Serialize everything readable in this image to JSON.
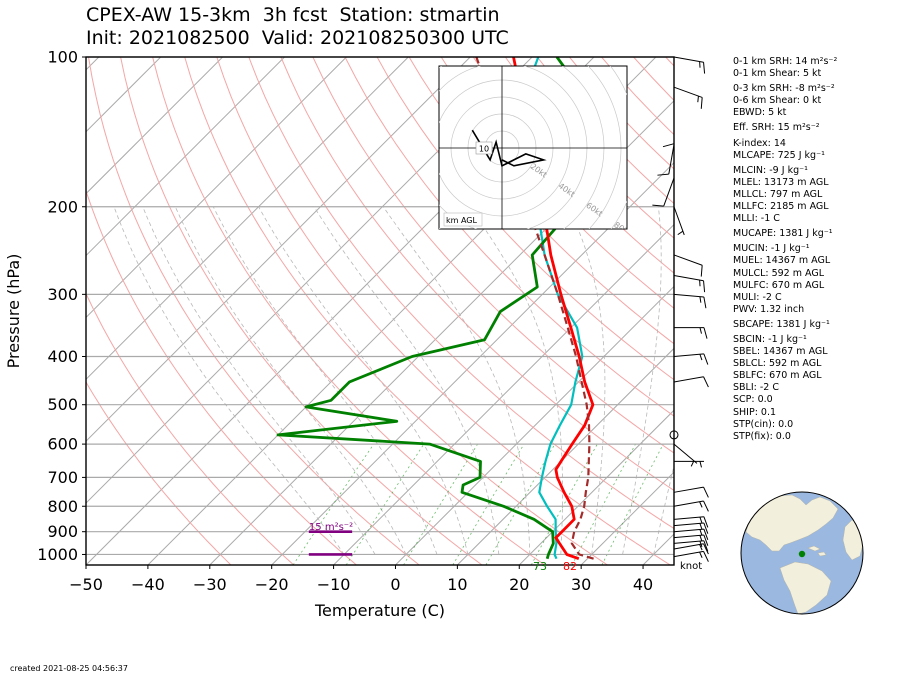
{
  "title_line1": "CPEX-AW 15-3km  3h fcst  Station: stmartin",
  "title_line2": "Init: 2021082500  Valid: 202108250300 UTC",
  "created": "created 2021-08-25 04:56:37",
  "colors": {
    "temperature": "#ff0000",
    "dewpoint": "#008000",
    "virtual_temp": "#00bfbf",
    "parcel": "#a52a2a",
    "srh_bar": "#800080",
    "isotherm": "#999999",
    "dry_adiabat": "#f4a6a6",
    "mixing_ratio": "#2ca02c",
    "globe_ocean": "#9ab8e0",
    "globe_land": "#f2efdc"
  },
  "chart_data": {
    "type": "line",
    "xlabel": "Temperature (C)",
    "ylabel": "Pressure (hPa)",
    "xlim": [
      -50,
      45
    ],
    "ylim": [
      1050,
      100
    ],
    "y_scale": "log",
    "skew": true,
    "grid": true,
    "x_ticks": [
      "−50",
      "−40",
      "−30",
      "−20",
      "−10",
      "0",
      "10",
      "20",
      "30",
      "40"
    ],
    "y_ticks": [
      "100",
      "200",
      "300",
      "400",
      "500",
      "600",
      "700",
      "800",
      "900",
      "1000"
    ],
    "surface_temperature_label": "82",
    "surface_dewpoint_label": "73",
    "knot_label": "knot",
    "srh_bar_label": "15 m²s⁻²",
    "hodograph_label": "km AGL",
    "hodograph_height_label": "10",
    "hodograph_ring_labels": [
      "20kt",
      "40kt",
      "60kt",
      "80kt"
    ],
    "series": [
      {
        "key": "temperature",
        "values": [
          [
            1020,
            28.6
          ],
          [
            1000,
            26
          ],
          [
            950,
            23
          ],
          [
            925,
            21.5
          ],
          [
            900,
            21.5
          ],
          [
            850,
            21.5
          ],
          [
            800,
            19
          ],
          [
            750,
            15.5
          ],
          [
            700,
            12
          ],
          [
            675,
            10.5
          ],
          [
            650,
            10
          ],
          [
            600,
            9
          ],
          [
            550,
            8
          ],
          [
            500,
            6
          ],
          [
            450,
            1
          ],
          [
            400,
            -4
          ],
          [
            350,
            -10
          ],
          [
            300,
            -17
          ],
          [
            250,
            -25
          ],
          [
            200,
            -34
          ],
          [
            150,
            -46
          ],
          [
            100,
            -63
          ]
        ]
      },
      {
        "key": "dewpoint",
        "values": [
          [
            1020,
            23.5
          ],
          [
            1000,
            23
          ],
          [
            950,
            22
          ],
          [
            900,
            20
          ],
          [
            850,
            15
          ],
          [
            800,
            8
          ],
          [
            750,
            -1
          ],
          [
            725,
            -2
          ],
          [
            700,
            -0.5
          ],
          [
            650,
            -3
          ],
          [
            600,
            -14
          ],
          [
            575,
            -40
          ],
          [
            540,
            -23
          ],
          [
            505,
            -40
          ],
          [
            490,
            -37
          ],
          [
            450,
            -37
          ],
          [
            400,
            -31
          ],
          [
            370,
            -22
          ],
          [
            325,
            -24
          ],
          [
            290,
            -22
          ],
          [
            250,
            -28
          ],
          [
            200,
            -29
          ],
          [
            170,
            -34
          ],
          [
            140,
            -40
          ],
          [
            120,
            -45
          ],
          [
            100,
            -56
          ]
        ]
      },
      {
        "key": "virtual_temp",
        "values": [
          [
            1020,
            25
          ],
          [
            1000,
            24
          ],
          [
            950,
            22.5
          ],
          [
            900,
            20.5
          ],
          [
            850,
            18.5
          ],
          [
            800,
            15
          ],
          [
            750,
            11.5
          ],
          [
            700,
            9.5
          ],
          [
            650,
            7.5
          ],
          [
            600,
            5.5
          ],
          [
            550,
            4
          ],
          [
            500,
            2.5
          ],
          [
            450,
            -0.5
          ],
          [
            400,
            -3.5
          ],
          [
            350,
            -9
          ],
          [
            300,
            -17.5
          ],
          [
            250,
            -26
          ],
          [
            200,
            -35
          ],
          [
            150,
            -47.5
          ],
          [
            120,
            -55
          ],
          [
            100,
            -59
          ]
        ]
      },
      {
        "key": "parcel",
        "values": [
          [
            1020,
            31
          ],
          [
            1000,
            28
          ],
          [
            950,
            25
          ],
          [
            900,
            23.5
          ],
          [
            850,
            22.5
          ],
          [
            800,
            21
          ],
          [
            750,
            19
          ],
          [
            700,
            17
          ],
          [
            650,
            14.5
          ],
          [
            600,
            11.8
          ],
          [
            550,
            8.7
          ],
          [
            500,
            5
          ],
          [
            450,
            0.5
          ],
          [
            400,
            -4.5
          ],
          [
            350,
            -10.5
          ],
          [
            300,
            -17.5
          ],
          [
            250,
            -26
          ],
          [
            200,
            -36.5
          ],
          [
            150,
            -50
          ],
          [
            100,
            -69
          ]
        ]
      }
    ],
    "srh_bars": [
      {
        "pressure": 1000,
        "x_start": -14,
        "x_end": -7
      },
      {
        "pressure": 900,
        "x_start": -14,
        "x_end": -7
      }
    ],
    "hodograph": {
      "max_ring_kt": 80,
      "ring_step_kt": 10,
      "wind_uv_kt": [
        [
          -5,
          3
        ],
        [
          -2,
          -2
        ],
        [
          -1,
          1
        ],
        [
          0,
          -3
        ],
        [
          4,
          -1
        ],
        [
          7,
          -2
        ],
        [
          2,
          -3
        ],
        [
          0,
          -2
        ]
      ]
    },
    "wind_barbs": [
      {
        "pressure": 1010,
        "speed_kt": 15,
        "dir_deg": 80
      },
      {
        "pressure": 975,
        "speed_kt": 15,
        "dir_deg": 80
      },
      {
        "pressure": 950,
        "speed_kt": 15,
        "dir_deg": 85
      },
      {
        "pressure": 925,
        "speed_kt": 15,
        "dir_deg": 85
      },
      {
        "pressure": 900,
        "speed_kt": 15,
        "dir_deg": 85
      },
      {
        "pressure": 875,
        "speed_kt": 15,
        "dir_deg": 85
      },
      {
        "pressure": 850,
        "speed_kt": 15,
        "dir_deg": 85
      },
      {
        "pressure": 800,
        "speed_kt": 15,
        "dir_deg": 80
      },
      {
        "pressure": 750,
        "speed_kt": 10,
        "dir_deg": 80
      },
      {
        "pressure": 650,
        "speed_kt": 5,
        "dir_deg": 90
      },
      {
        "pressure": 600,
        "speed_kt": 5,
        "dir_deg": 130
      },
      {
        "pressure": 575,
        "speed_kt": 0,
        "dir_deg": 0
      },
      {
        "pressure": 450,
        "speed_kt": 10,
        "dir_deg": 80
      },
      {
        "pressure": 400,
        "speed_kt": 15,
        "dir_deg": 85
      },
      {
        "pressure": 350,
        "speed_kt": 15,
        "dir_deg": 90
      },
      {
        "pressure": 300,
        "speed_kt": 15,
        "dir_deg": 95
      },
      {
        "pressure": 275,
        "speed_kt": 15,
        "dir_deg": 100
      },
      {
        "pressure": 250,
        "speed_kt": 10,
        "dir_deg": 110
      },
      {
        "pressure": 200,
        "speed_kt": 5,
        "dir_deg": 160
      },
      {
        "pressure": 175,
        "speed_kt": 10,
        "dir_deg": 200
      },
      {
        "pressure": 150,
        "speed_kt": 10,
        "dir_deg": 190
      },
      {
        "pressure": 130,
        "speed_kt": 10,
        "dir_deg": 180
      },
      {
        "pressure": 115,
        "speed_kt": 15,
        "dir_deg": 110
      },
      {
        "pressure": 100,
        "speed_kt": 15,
        "dir_deg": 100
      }
    ]
  },
  "params": [
    "0-1 km SRH: 14 m²s⁻²",
    "0-1 km Shear: 5 kt",
    "0-3 km SRH: -8 m²s⁻²",
    "0-6 km Shear: 0 kt",
    "EBWD: 5 kt",
    "Eff. SRH: 15 m²s⁻²",
    "K-index: 14",
    "MLCAPE: 725 J kg⁻¹",
    "MLCIN: -9 J kg⁻¹",
    "MLEL: 13173 m AGL",
    "MLLCL: 797 m AGL",
    "MLLFC: 2185 m AGL",
    "MLLI: -1 C",
    "MUCAPE: 1381 J kg⁻¹",
    "MUCIN: -1 J kg⁻¹",
    "MUEL: 14367 m AGL",
    "MULCL: 592 m AGL",
    "MULFC: 670 m AGL",
    "MULI: -2 C",
    "PWV: 1.32 inch",
    "SBCAPE: 1381 J kg⁻¹",
    "SBCIN: -1 J kg⁻¹",
    "SBEL: 14367 m AGL",
    "SBLCL: 592 m AGL",
    "SBLFC: 670 m AGL",
    "SBLI: -2 C",
    "SCP: 0.0",
    "SHIP: 0.1",
    "STP(cin): 0.0",
    "STP(fix): 0.0"
  ]
}
